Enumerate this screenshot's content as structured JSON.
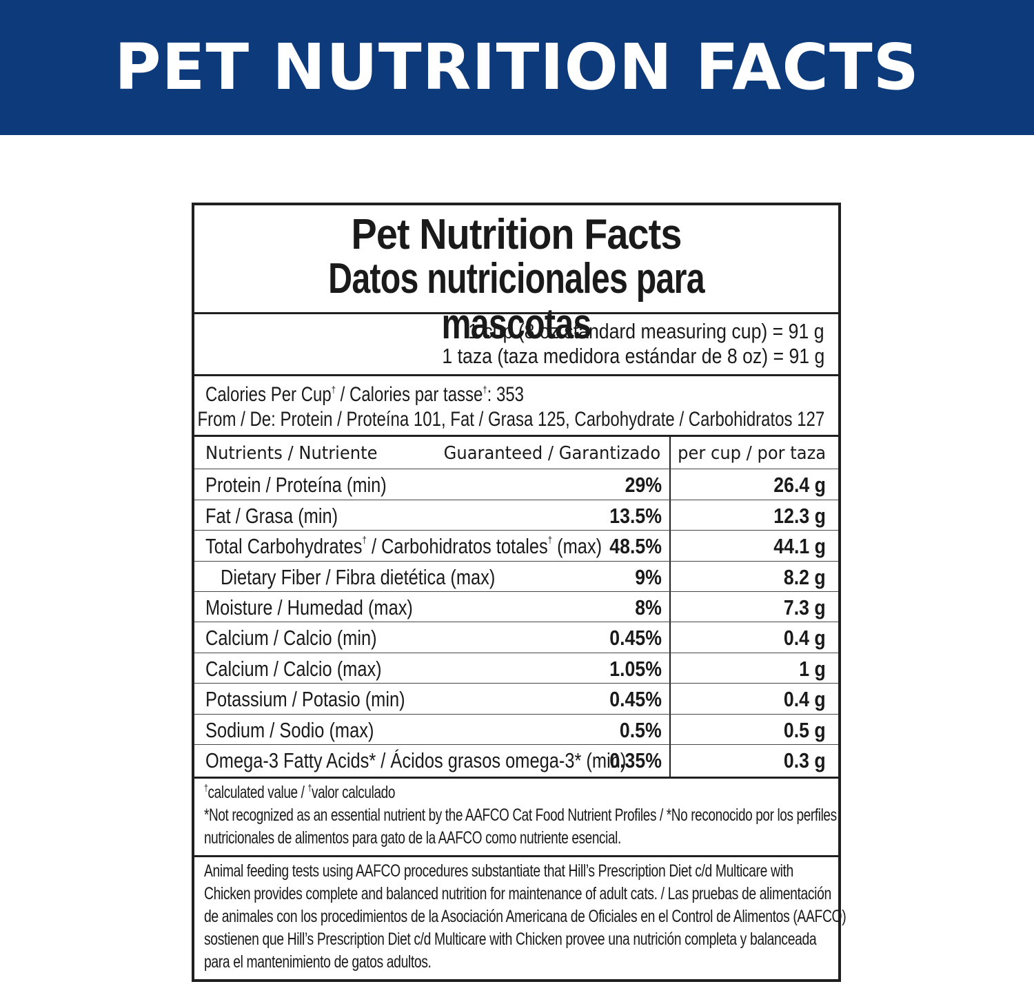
{
  "banner": {
    "title": "PET NUTRITION FACTS"
  },
  "panel": {
    "title_en": "Pet Nutrition Facts",
    "title_es": "Datos nutricionales para mascotas",
    "serving_en": "1 cup (8 oz standard measuring cup) = 91 g",
    "serving_es": "1 taza (taza medidora estándar de 8 oz) = 91 g",
    "calories": {
      "label_1": "Calories Per Cup",
      "label_2": " / Calories par tasse",
      "value": ": 353",
      "dagger": "†",
      "breakdown": "From / De: Protein / Proteína 101, Fat / Grasa 125, Carbohydrate / Carbohidratos 127"
    },
    "nutrients_header": {
      "nutrient": "Nutrients / Nutriente",
      "guaranteed": "Guaranteed / Garantizado",
      "per_cup": "per cup / por taza"
    },
    "rows": [
      {
        "name": "Protein / Proteína (min)",
        "guaranteed": "29%",
        "per_cup": "26.4 g"
      },
      {
        "name": "Fat / Grasa (min)",
        "guaranteed": "13.5%",
        "per_cup": "12.3 g"
      },
      {
        "name_a": "Total Carbohydrates",
        "name_b": " / Carbohidratos totales",
        "name_c": " (max)",
        "guaranteed": "48.5%",
        "per_cup": "44.1 g"
      },
      {
        "name": "Dietary Fiber / Fibra dietética (max)",
        "guaranteed": "9%",
        "per_cup": "8.2 g"
      },
      {
        "name": "Moisture / Humedad (max)",
        "guaranteed": "8%",
        "per_cup": "7.3 g"
      },
      {
        "name": "Calcium / Calcio (min)",
        "guaranteed": "0.45%",
        "per_cup": "0.4 g"
      },
      {
        "name": "Calcium / Calcio (max)",
        "guaranteed": "1.05%",
        "per_cup": "1 g"
      },
      {
        "name": "Potassium / Potasio (min)",
        "guaranteed": "0.45%",
        "per_cup": "0.4 g"
      },
      {
        "name": "Sodium / Sodio (max)",
        "guaranteed": "0.5%",
        "per_cup": "0.5 g"
      },
      {
        "name": "Omega-3 Fatty Acids* / Ácidos grasos omega-3* (min)",
        "guaranteed": "0.35%",
        "per_cup": "0.3 g"
      }
    ],
    "footnotes": {
      "line_1a": "calculated value / ",
      "line_1b": "valor calculado",
      "line_2": "*Not recognized as an essential nutrient by the AAFCO Cat Food Nutrient Profiles / *No reconocido por los perfiles",
      "line_3": "nutricionales de alimentos para gato de la AAFCO como nutriente esencial."
    },
    "claim": [
      "Animal feeding tests using AAFCO procedures substantiate that Hill’s Prescription Diet c/d Multicare with",
      "Chicken provides complete and balanced nutrition for maintenance of adult cats. / Las pruebas de alimentación",
      "de animales con los procedimientos de la Asociación Americana de Oficiales en el Control de Alimentos (AAFCO)",
      "sostienen que Hill’s Prescription Diet c/d Multicare with Chicken provee una nutrición completa y balanceada",
      "para el mantenimiento de gatos adultos."
    ]
  },
  "colors": {
    "banner": "#0d3a7b",
    "text": "#1a1a1a",
    "rules": "#1f1f1f"
  }
}
